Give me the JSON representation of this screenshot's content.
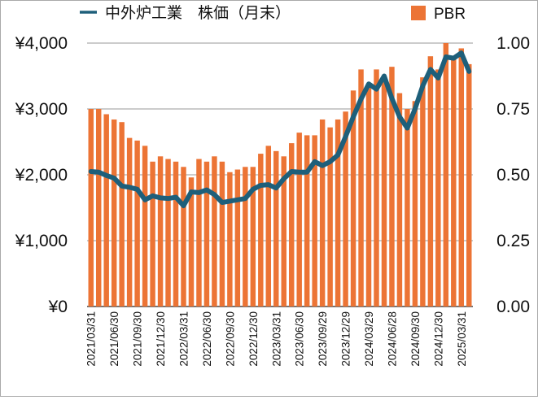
{
  "chart_data": {
    "type": "bar+line",
    "title": "",
    "series": [
      {
        "name": "中外炉工業　株価（月末）",
        "kind": "line",
        "axis": "left",
        "color": "#1e5f7a",
        "values": [
          2050,
          2040,
          1990,
          1950,
          1830,
          1810,
          1780,
          1620,
          1680,
          1650,
          1640,
          1660,
          1530,
          1740,
          1730,
          1770,
          1700,
          1580,
          1600,
          1620,
          1640,
          1780,
          1840,
          1850,
          1800,
          1940,
          2050,
          2040,
          2040,
          2200,
          2140,
          2200,
          2300,
          2580,
          2880,
          3150,
          3380,
          3300,
          3500,
          3160,
          2880,
          2710,
          3000,
          3350,
          3600,
          3470,
          3790,
          3770,
          3850,
          3570
        ]
      },
      {
        "name": "PBR",
        "kind": "bar",
        "axis": "right",
        "color": "#ec7435",
        "values": [
          0.75,
          0.75,
          0.73,
          0.71,
          0.7,
          0.64,
          0.63,
          0.61,
          0.55,
          0.57,
          0.56,
          0.55,
          0.53,
          0.49,
          0.56,
          0.55,
          0.57,
          0.55,
          0.51,
          0.52,
          0.53,
          0.53,
          0.58,
          0.61,
          0.59,
          0.57,
          0.62,
          0.66,
          0.65,
          0.65,
          0.71,
          0.68,
          0.71,
          0.74,
          0.82,
          0.9,
          0.83,
          0.9,
          0.87,
          0.91,
          0.81,
          0.75,
          0.78,
          0.87,
          0.95,
          0.9,
          1.0,
          0.95,
          0.98,
          0.92
        ]
      }
    ],
    "categories": [
      "2021/03/31",
      "2021/04/30",
      "2021/05/31",
      "2021/06/30",
      "2021/07/30",
      "2021/08/31",
      "2021/09/30",
      "2021/10/29",
      "2021/11/30",
      "2021/12/30",
      "2022/01/31",
      "2022/02/28",
      "2022/03/31",
      "2022/04/28",
      "2022/05/31",
      "2022/06/30",
      "2022/07/29",
      "2022/08/31",
      "2022/09/30",
      "2022/10/31",
      "2022/11/30",
      "2022/12/30",
      "2023/01/31",
      "2023/02/28",
      "2023/03/31",
      "2023/04/28",
      "2023/05/31",
      "2023/06/30",
      "2023/07/31",
      "2023/08/31",
      "2023/09/29",
      "2023/10/31",
      "2023/11/30",
      "2023/12/29",
      "2024/01/31",
      "2024/02/29",
      "2024/03/29",
      "2024/04/30",
      "2024/05/31",
      "2024/06/28",
      "2024/07/31",
      "2024/08/30",
      "2024/09/30",
      "2024/10/31",
      "2024/11/29",
      "2024/12/30",
      "2025/01/31",
      "2025/02/28",
      "2025/03/31",
      "2025/04/30"
    ],
    "x_tick_labels": [
      "2021/03/31",
      "2021/06/30",
      "2021/09/30",
      "2021/12/30",
      "2022/03/31",
      "2022/06/30",
      "2022/09/30",
      "2022/12/30",
      "2023/03/31",
      "2023/06/30",
      "2023/09/29",
      "2023/12/29",
      "2024/03/29",
      "2024/06/28",
      "2024/09/30",
      "2024/12/30",
      "2025/03/31"
    ],
    "y_left": {
      "ticks": [
        "¥0",
        "¥1,000",
        "¥2,000",
        "¥3,000",
        "¥4,000"
      ],
      "range": [
        0,
        4000
      ]
    },
    "y_right": {
      "ticks": [
        "0.00",
        "0.25",
        "0.50",
        "0.75",
        "1.00"
      ],
      "range": [
        0,
        1.0
      ]
    },
    "grid": "horizontal",
    "legend_position": "top"
  }
}
